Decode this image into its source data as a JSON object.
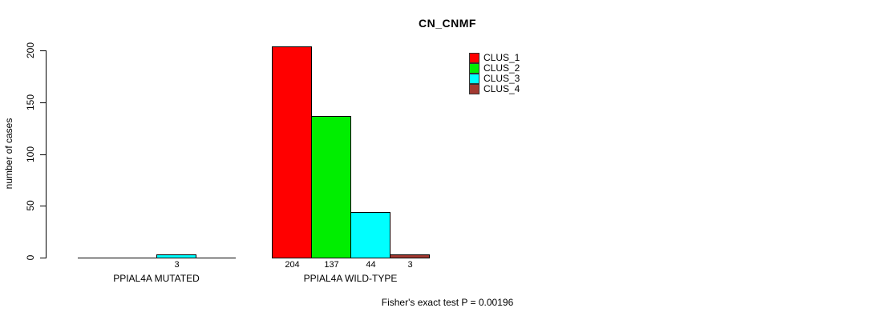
{
  "title": "CN_CNMF",
  "y_axis": {
    "label": "number of cases",
    "ticks": [
      0,
      50,
      100,
      150,
      200
    ]
  },
  "legend": {
    "items": [
      {
        "label": "CLUS_1",
        "color": "#ff0000"
      },
      {
        "label": "CLUS_2",
        "color": "#00ee00"
      },
      {
        "label": "CLUS_3",
        "color": "#00ffff"
      },
      {
        "label": "CLUS_4",
        "color": "#a33a32"
      }
    ]
  },
  "annotation": "Fisher's exact test P = 0.00196",
  "chart_data": {
    "type": "bar",
    "title": "CN_CNMF",
    "xlabel": "",
    "ylabel": "number of cases",
    "ylim": [
      0,
      200
    ],
    "yticks": [
      0,
      50,
      100,
      150,
      200
    ],
    "grid": false,
    "legend_position": "top-right-inside",
    "categories": [
      "PPIAL4A MUTATED",
      "PPIAL4A WILD-TYPE"
    ],
    "series": [
      {
        "name": "CLUS_1",
        "color": "#ff0000",
        "values": [
          0,
          204
        ]
      },
      {
        "name": "CLUS_2",
        "color": "#00ee00",
        "values": [
          0,
          137
        ]
      },
      {
        "name": "CLUS_3",
        "color": "#00ffff",
        "values": [
          3,
          44
        ]
      },
      {
        "name": "CLUS_4",
        "color": "#a33a32",
        "values": [
          0,
          3
        ]
      }
    ],
    "bar_value_labels": "shown under each bar, only for values > 0",
    "annotation": "Fisher's exact test P = 0.00196"
  }
}
